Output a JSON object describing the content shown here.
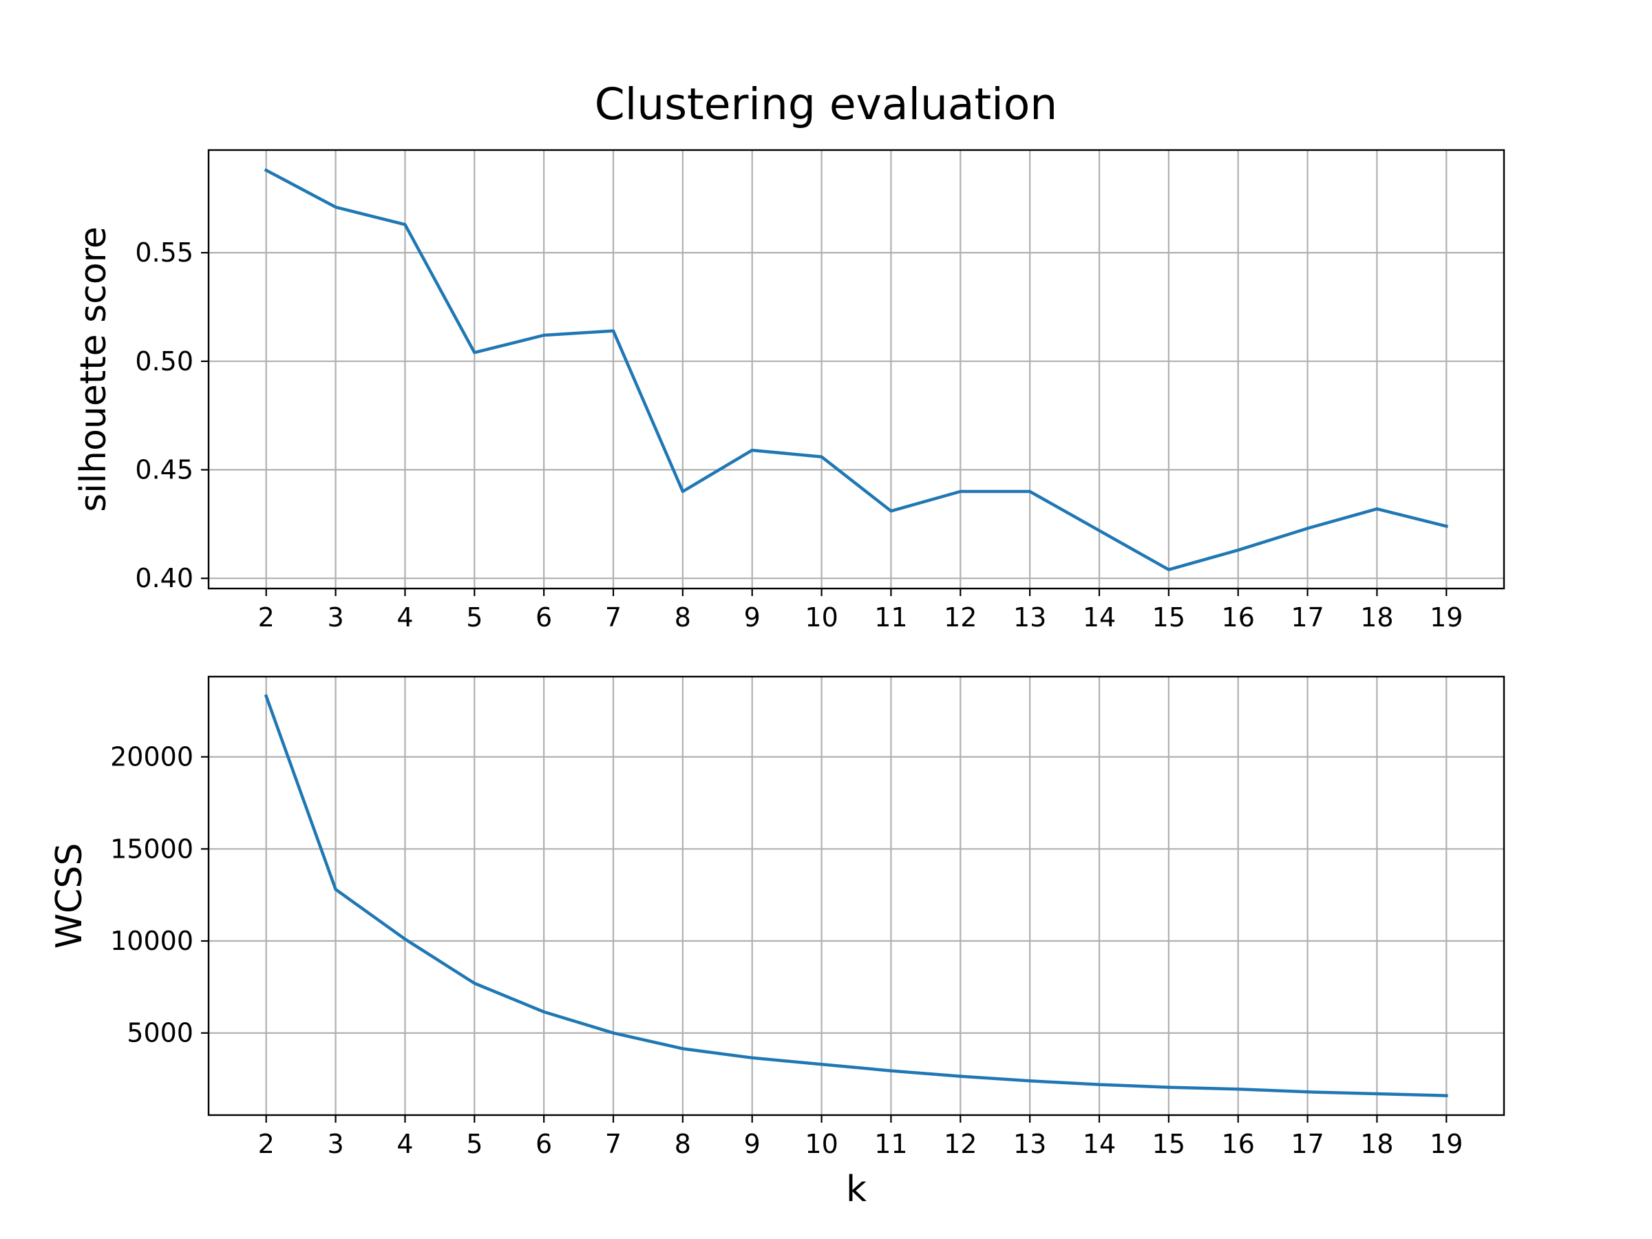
{
  "chart_data": [
    {
      "type": "line",
      "title": "Clustering evaluation",
      "xlabel": "",
      "ylabel": "silhouette score",
      "x": [
        2,
        3,
        4,
        5,
        6,
        7,
        8,
        9,
        10,
        11,
        12,
        13,
        14,
        15,
        16,
        17,
        18,
        19
      ],
      "series": [
        {
          "values": [
            0.588,
            0.571,
            0.563,
            0.504,
            0.512,
            0.514,
            0.44,
            0.459,
            0.456,
            0.431,
            0.44,
            0.44,
            0.422,
            0.404,
            0.413,
            0.423,
            0.432,
            0.424
          ],
          "color": "#1f77b4"
        }
      ],
      "xticks": [
        2,
        3,
        4,
        5,
        6,
        7,
        8,
        9,
        10,
        11,
        12,
        13,
        14,
        15,
        16,
        17,
        18,
        19
      ],
      "yticks": [
        "0.40",
        "0.45",
        "0.50",
        "0.55"
      ],
      "xlim": [
        1.17,
        19.83
      ],
      "ylim": [
        0.3953,
        0.5973
      ],
      "grid": true
    },
    {
      "type": "line",
      "title": "",
      "xlabel": "k",
      "ylabel": "WCSS",
      "x": [
        2,
        3,
        4,
        5,
        6,
        7,
        8,
        9,
        10,
        11,
        12,
        13,
        14,
        15,
        16,
        17,
        18,
        19
      ],
      "series": [
        {
          "values": [
            23300,
            12800,
            10100,
            7700,
            6150,
            5000,
            4150,
            3650,
            3300,
            2950,
            2650,
            2400,
            2200,
            2050,
            1950,
            1800,
            1700,
            1600
          ],
          "color": "#1f77b4"
        }
      ],
      "xticks": [
        2,
        3,
        4,
        5,
        6,
        7,
        8,
        9,
        10,
        11,
        12,
        13,
        14,
        15,
        16,
        17,
        18,
        19
      ],
      "yticks": [
        "5000",
        "10000",
        "15000",
        "20000"
      ],
      "xlim": [
        1.17,
        19.83
      ],
      "ylim": [
        540,
        24360
      ],
      "grid": true
    }
  ]
}
